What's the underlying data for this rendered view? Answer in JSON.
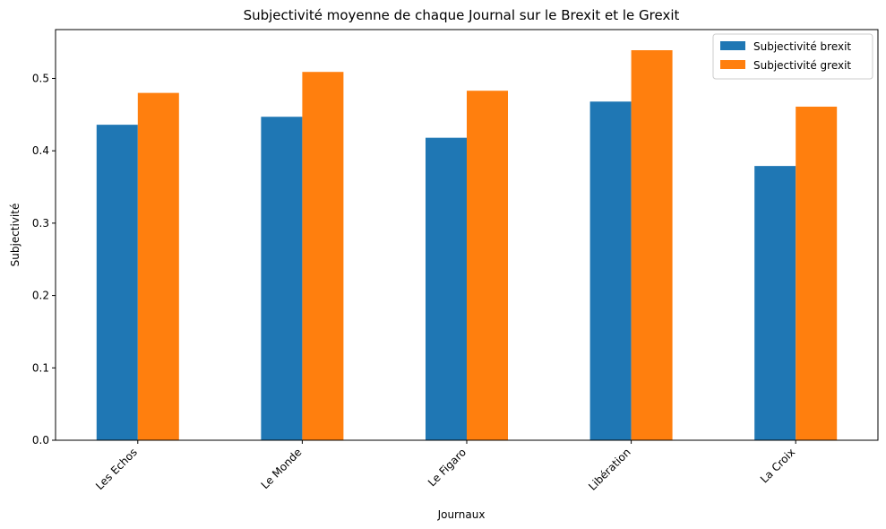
{
  "chart_data": {
    "type": "bar",
    "title": "Subjectivité moyenne de chaque Journal sur le Brexit et le Grexit",
    "xlabel": "Journaux",
    "ylabel": "Subjectivité",
    "categories": [
      "Les Echos",
      "Le Monde",
      "Le Figaro",
      "Libération",
      "La Croix"
    ],
    "series": [
      {
        "name": "Subjectivité brexit",
        "color": "#1f77b4",
        "values": [
          0.436,
          0.447,
          0.418,
          0.468,
          0.379
        ]
      },
      {
        "name": "Subjectivité grexit",
        "color": "#ff7f0e",
        "values": [
          0.48,
          0.509,
          0.483,
          0.539,
          0.461
        ]
      }
    ],
    "ylim": [
      0,
      0.5675
    ],
    "yticks": [
      0.0,
      0.1,
      0.2,
      0.3,
      0.4,
      0.5
    ],
    "ytick_labels": [
      "0.0",
      "0.1",
      "0.2",
      "0.3",
      "0.4",
      "0.5"
    ],
    "grid": false,
    "legend_position": "top-right",
    "xtick_rotation": 45
  }
}
